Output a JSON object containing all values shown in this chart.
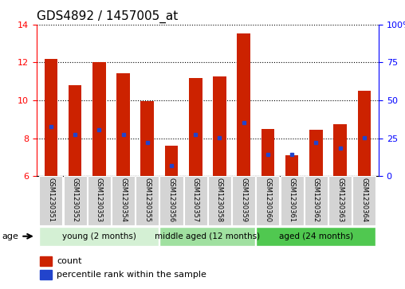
{
  "title": "GDS4892 / 1457005_at",
  "samples": [
    "GSM1230351",
    "GSM1230352",
    "GSM1230353",
    "GSM1230354",
    "GSM1230355",
    "GSM1230356",
    "GSM1230357",
    "GSM1230358",
    "GSM1230359",
    "GSM1230360",
    "GSM1230361",
    "GSM1230362",
    "GSM1230363",
    "GSM1230364"
  ],
  "count_values": [
    12.2,
    10.8,
    12.0,
    11.45,
    9.95,
    7.6,
    11.2,
    11.25,
    13.55,
    8.5,
    7.1,
    8.45,
    8.75,
    10.5
  ],
  "percentile_values": [
    8.6,
    8.2,
    8.45,
    8.2,
    7.8,
    6.55,
    8.2,
    8.05,
    8.85,
    7.15,
    7.15,
    7.8,
    7.5,
    8.05
  ],
  "groups": [
    {
      "label": "young (2 months)",
      "start": 0,
      "end": 5,
      "color": "#d4f0d4"
    },
    {
      "label": "middle aged (12 months)",
      "start": 5,
      "end": 9,
      "color": "#a0e0a0"
    },
    {
      "label": "aged (24 months)",
      "start": 9,
      "end": 14,
      "color": "#50c850"
    }
  ],
  "ylim_left": [
    6,
    14
  ],
  "ylim_right": [
    0,
    100
  ],
  "yticks_left": [
    6,
    8,
    10,
    12,
    14
  ],
  "yticks_right": [
    0,
    25,
    50,
    75,
    100
  ],
  "bar_color": "#cc2200",
  "dot_color": "#2244cc",
  "bar_width": 0.55,
  "legend_count_label": "count",
  "legend_pct_label": "percentile rank within the sample",
  "age_label": "age",
  "title_fontsize": 11,
  "tick_fontsize": 8,
  "sample_fontsize": 6,
  "group_fontsize": 7.5,
  "legend_fontsize": 8
}
